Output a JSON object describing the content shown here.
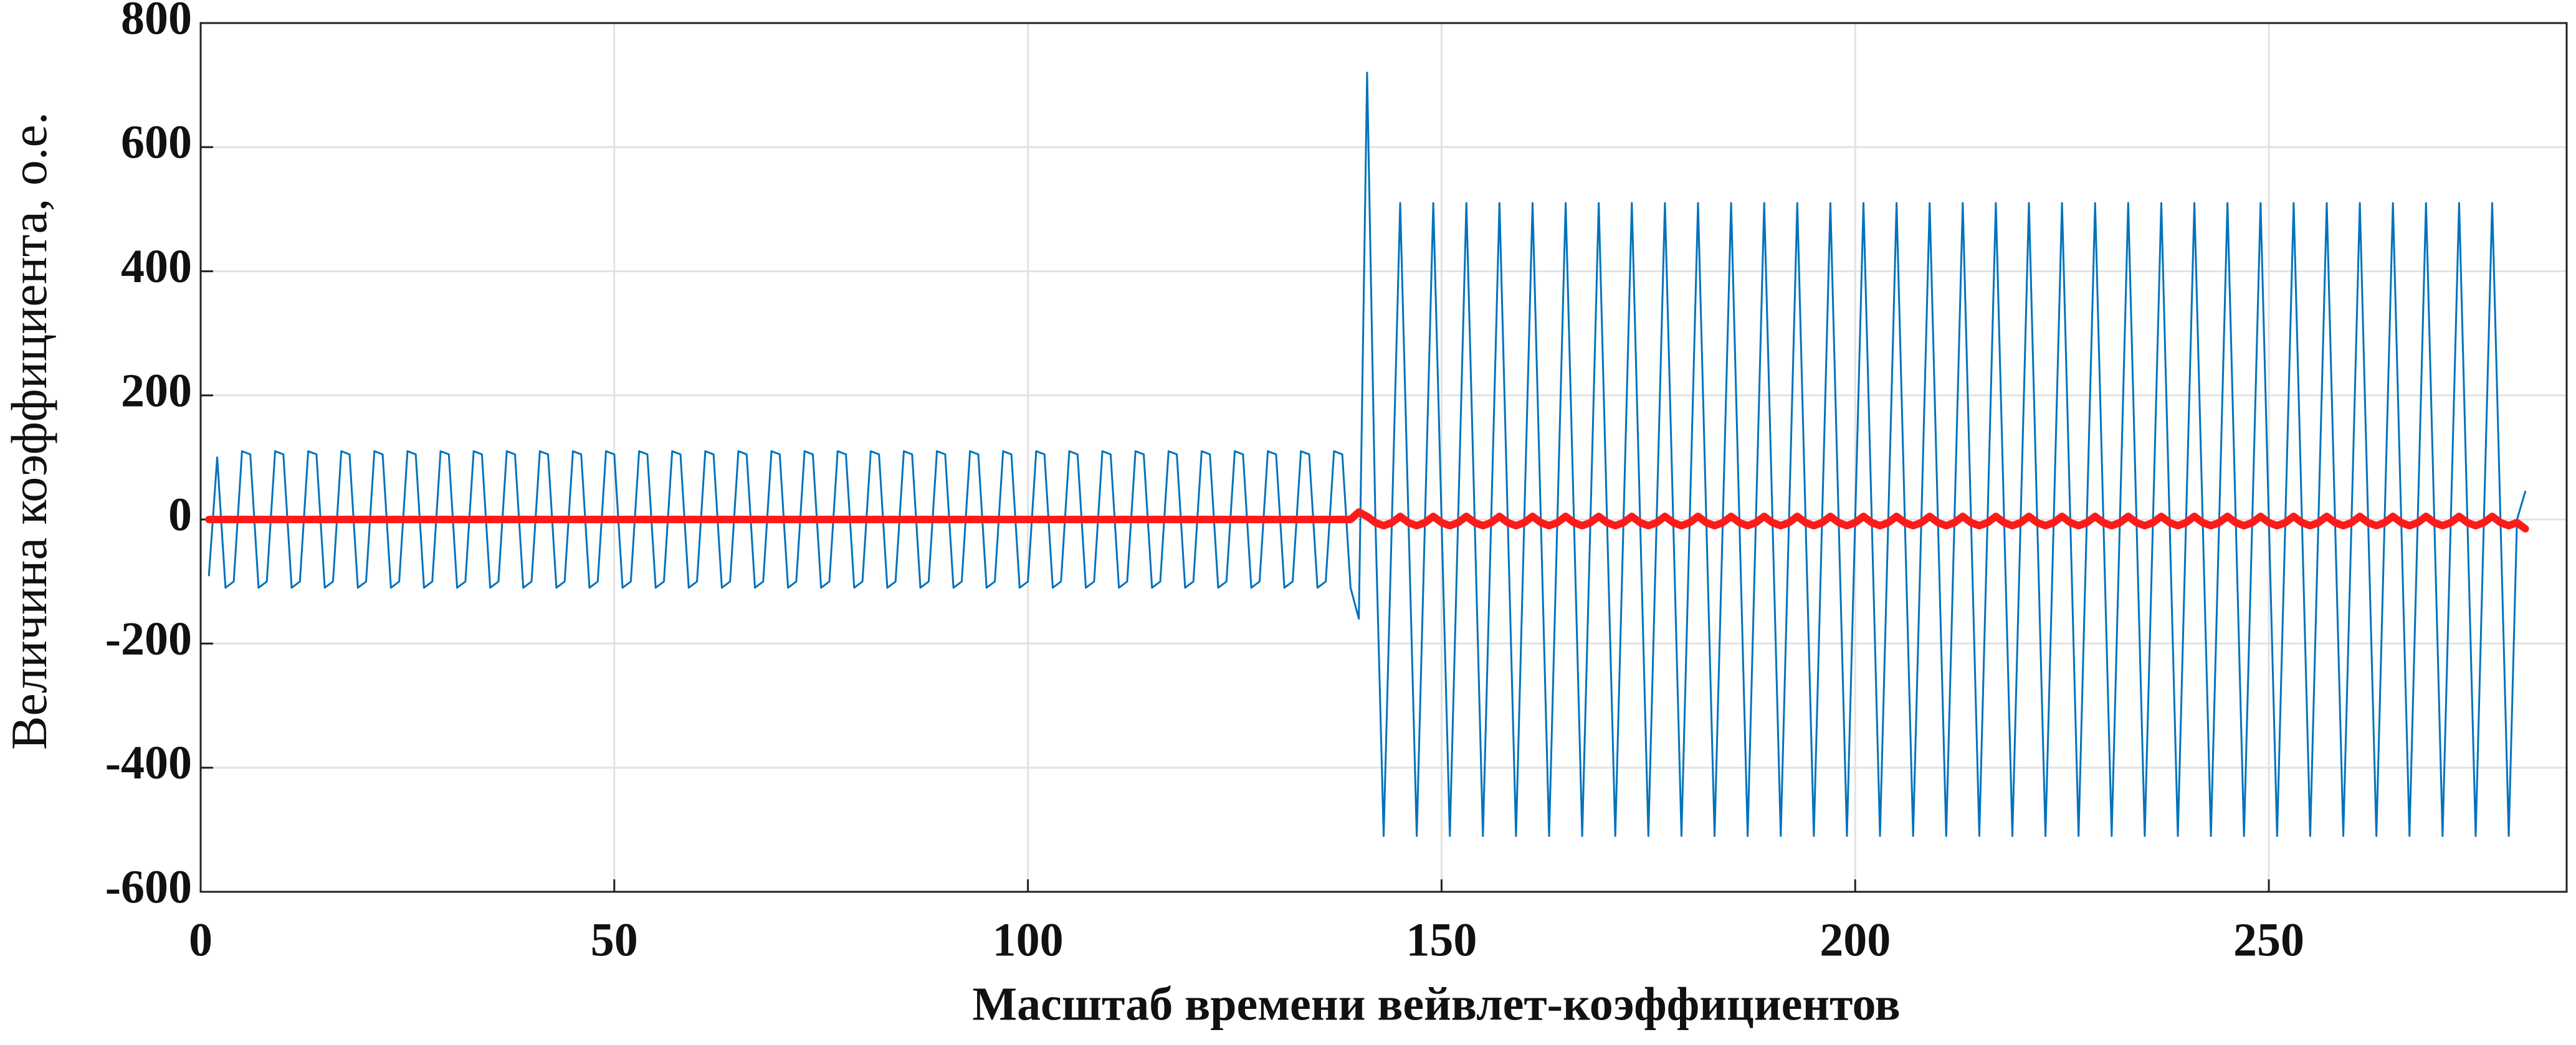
{
  "chart_data": {
    "type": "line",
    "xlabel": "Масштаб времени вейвлет-коэффициентов",
    "ylabel": "Величина коэффициента, о.е.",
    "xlim": [
      0,
      286
    ],
    "xticks": [
      0,
      50,
      100,
      150,
      200,
      250
    ],
    "ylim": [
      -600,
      800
    ],
    "yticks": [
      -600,
      -400,
      -200,
      0,
      200,
      400,
      600,
      800
    ],
    "grid": true,
    "x": [
      1,
      2,
      3,
      4,
      5,
      6,
      7,
      8,
      9,
      10,
      11,
      12,
      13,
      14,
      15,
      16,
      17,
      18,
      19,
      20,
      21,
      22,
      23,
      24,
      25,
      26,
      27,
      28,
      29,
      30,
      31,
      32,
      33,
      34,
      35,
      36,
      37,
      38,
      39,
      40,
      41,
      42,
      43,
      44,
      45,
      46,
      47,
      48,
      49,
      50,
      51,
      52,
      53,
      54,
      55,
      56,
      57,
      58,
      59,
      60,
      61,
      62,
      63,
      64,
      65,
      66,
      67,
      68,
      69,
      70,
      71,
      72,
      73,
      74,
      75,
      76,
      77,
      78,
      79,
      80,
      81,
      82,
      83,
      84,
      85,
      86,
      87,
      88,
      89,
      90,
      91,
      92,
      93,
      94,
      95,
      96,
      97,
      98,
      99,
      100,
      101,
      102,
      103,
      104,
      105,
      106,
      107,
      108,
      109,
      110,
      111,
      112,
      113,
      114,
      115,
      116,
      117,
      118,
      119,
      120,
      121,
      122,
      123,
      124,
      125,
      126,
      127,
      128,
      129,
      130,
      131,
      132,
      133,
      134,
      135,
      136,
      137,
      138,
      139,
      140,
      141,
      142,
      143,
      144,
      145,
      146,
      147,
      148,
      149,
      150,
      151,
      152,
      153,
      154,
      155,
      156,
      157,
      158,
      159,
      160,
      161,
      162,
      163,
      164,
      165,
      166,
      167,
      168,
      169,
      170,
      171,
      172,
      173,
      174,
      175,
      176,
      177,
      178,
      179,
      180,
      181,
      182,
      183,
      184,
      185,
      186,
      187,
      188,
      189,
      190,
      191,
      192,
      193,
      194,
      195,
      196,
      197,
      198,
      199,
      200,
      201,
      202,
      203,
      204,
      205,
      206,
      207,
      208,
      209,
      210,
      211,
      212,
      213,
      214,
      215,
      216,
      217,
      218,
      219,
      220,
      221,
      222,
      223,
      224,
      225,
      226,
      227,
      228,
      229,
      230,
      231,
      232,
      233,
      234,
      235,
      236,
      237,
      238,
      239,
      240,
      241,
      242,
      243,
      244,
      245,
      246,
      247,
      248,
      249,
      250,
      251,
      252,
      253,
      254,
      255,
      256,
      257,
      258,
      259,
      260,
      261,
      262,
      263,
      264,
      265,
      266,
      267,
      268,
      269,
      270,
      271,
      272,
      273,
      274,
      275,
      276,
      277,
      278,
      279,
      280,
      281
    ],
    "series": [
      {
        "color": "#0072bd",
        "values": [
          -90,
          100,
          -110,
          -100,
          110,
          105,
          -110,
          -100,
          110,
          105,
          -110,
          -100,
          110,
          105,
          -110,
          -100,
          110,
          105,
          -110,
          -100,
          110,
          105,
          -110,
          -100,
          110,
          105,
          -110,
          -100,
          110,
          105,
          -110,
          -100,
          110,
          105,
          -110,
          -100,
          110,
          105,
          -110,
          -100,
          110,
          105,
          -110,
          -100,
          110,
          105,
          -110,
          -100,
          110,
          105,
          -110,
          -100,
          110,
          105,
          -110,
          -100,
          110,
          105,
          -110,
          -100,
          110,
          105,
          -110,
          -100,
          110,
          105,
          -110,
          -100,
          110,
          105,
          -110,
          -100,
          110,
          105,
          -110,
          -100,
          110,
          105,
          -110,
          -100,
          110,
          105,
          -110,
          -100,
          110,
          105,
          -110,
          -100,
          110,
          105,
          -110,
          -100,
          110,
          105,
          -110,
          -100,
          110,
          105,
          -110,
          -100,
          110,
          105,
          -110,
          -100,
          110,
          105,
          -110,
          -100,
          110,
          105,
          -110,
          -100,
          110,
          105,
          -110,
          -100,
          110,
          105,
          -110,
          -100,
          110,
          105,
          -110,
          -100,
          110,
          105,
          -110,
          -100,
          110,
          105,
          -110,
          -100,
          110,
          105,
          -110,
          -100,
          110,
          105,
          -110,
          -160,
          720,
          0,
          -510,
          0,
          510,
          0,
          -510,
          0,
          510,
          0,
          -510,
          0,
          510,
          0,
          -510,
          0,
          510,
          0,
          -510,
          0,
          510,
          0,
          -510,
          0,
          510,
          0,
          -510,
          0,
          510,
          0,
          -510,
          0,
          510,
          0,
          -510,
          0,
          510,
          0,
          -510,
          0,
          510,
          0,
          -510,
          0,
          510,
          0,
          -510,
          0,
          510,
          0,
          -510,
          0,
          510,
          0,
          -510,
          0,
          510,
          0,
          -510,
          0,
          510,
          0,
          -510,
          0,
          510,
          0,
          -510,
          0,
          510,
          0,
          -510,
          0,
          510,
          0,
          -510,
          0,
          510,
          0,
          -510,
          0,
          510,
          0,
          -510,
          0,
          510,
          0,
          -510,
          0,
          510,
          0,
          -510,
          0,
          510,
          0,
          -510,
          0,
          510,
          0,
          -510,
          0,
          510,
          0,
          -510,
          0,
          510,
          0,
          -510,
          0,
          510,
          0,
          -510,
          0,
          510,
          0,
          -510,
          0,
          510,
          0,
          -510,
          0,
          510,
          0,
          -510,
          0,
          510,
          0,
          -510,
          0,
          510,
          0,
          -510,
          0,
          510,
          0,
          -510,
          0,
          510,
          0,
          -510,
          0,
          45
        ]
      },
      {
        "color": "#ff1a1a",
        "values": [
          0,
          0,
          0,
          0,
          0,
          0,
          0,
          0,
          0,
          0,
          0,
          0,
          0,
          0,
          0,
          0,
          0,
          0,
          0,
          0,
          0,
          0,
          0,
          0,
          0,
          0,
          0,
          0,
          0,
          0,
          0,
          0,
          0,
          0,
          0,
          0,
          0,
          0,
          0,
          0,
          0,
          0,
          0,
          0,
          0,
          0,
          0,
          0,
          0,
          0,
          0,
          0,
          0,
          0,
          0,
          0,
          0,
          0,
          0,
          0,
          0,
          0,
          0,
          0,
          0,
          0,
          0,
          0,
          0,
          0,
          0,
          0,
          0,
          0,
          0,
          0,
          0,
          0,
          0,
          0,
          0,
          0,
          0,
          0,
          0,
          0,
          0,
          0,
          0,
          0,
          0,
          0,
          0,
          0,
          0,
          0,
          0,
          0,
          0,
          0,
          0,
          0,
          0,
          0,
          0,
          0,
          0,
          0,
          0,
          0,
          0,
          0,
          0,
          0,
          0,
          0,
          0,
          0,
          0,
          0,
          0,
          0,
          0,
          0,
          0,
          0,
          0,
          0,
          0,
          0,
          0,
          0,
          0,
          0,
          0,
          0,
          0,
          0,
          0,
          12,
          5,
          -5,
          -10,
          -5,
          5,
          -5,
          -10,
          -5,
          5,
          -5,
          -10,
          -5,
          5,
          -5,
          -10,
          -5,
          5,
          -5,
          -10,
          -5,
          5,
          -5,
          -10,
          -5,
          5,
          -5,
          -10,
          -5,
          5,
          -5,
          -10,
          -5,
          5,
          -5,
          -10,
          -5,
          5,
          -5,
          -10,
          -5,
          5,
          -5,
          -10,
          -5,
          5,
          -5,
          -10,
          -5,
          5,
          -5,
          -10,
          -5,
          5,
          -5,
          -10,
          -5,
          5,
          -5,
          -10,
          -5,
          5,
          -5,
          -10,
          -5,
          5,
          -5,
          -10,
          -5,
          5,
          -5,
          -10,
          -5,
          5,
          -5,
          -10,
          -5,
          5,
          -5,
          -10,
          -5,
          5,
          -5,
          -10,
          -5,
          5,
          -5,
          -10,
          -5,
          5,
          -5,
          -10,
          -5,
          5,
          -5,
          -10,
          -5,
          5,
          -5,
          -10,
          -5,
          5,
          -5,
          -10,
          -5,
          5,
          -5,
          -10,
          -5,
          5,
          -5,
          -10,
          -5,
          5,
          -5,
          -10,
          -5,
          5,
          -5,
          -10,
          -5,
          5,
          -5,
          -10,
          -5,
          5,
          -5,
          -10,
          -5,
          5,
          -5,
          -10,
          -5,
          5,
          -5,
          -10,
          -5,
          5,
          -5,
          -10,
          -5,
          -15
        ]
      }
    ]
  }
}
